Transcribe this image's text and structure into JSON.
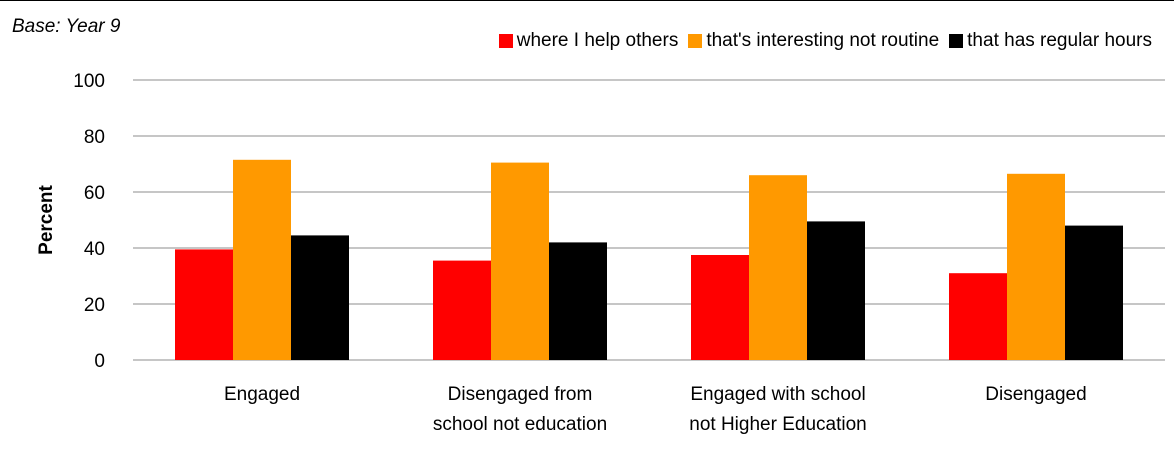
{
  "base_note": "Base: Year 9",
  "legend": [
    {
      "label": "where I help others",
      "color": "#ff0000"
    },
    {
      "label": "that's interesting not routine",
      "color": "#ff9900"
    },
    {
      "label": "that has regular hours",
      "color": "#000000"
    }
  ],
  "chart_data": {
    "type": "bar",
    "ylabel": "Percent",
    "xlabel": "",
    "ylim": [
      0,
      100
    ],
    "yticks": [
      0,
      20,
      40,
      60,
      80,
      100
    ],
    "grid": true,
    "legend_position": "top-right",
    "categories": [
      [
        "Engaged"
      ],
      [
        "Disengaged from",
        "school not education"
      ],
      [
        "Engaged with school",
        "not Higher Education"
      ],
      [
        "Disengaged"
      ]
    ],
    "series": [
      {
        "name": "where I help others",
        "color": "#ff0000",
        "values": [
          39.5,
          35.5,
          37.5,
          31
        ]
      },
      {
        "name": "that's interesting not routine",
        "color": "#ff9900",
        "values": [
          71.5,
          70.5,
          66,
          66.5
        ]
      },
      {
        "name": "that has regular hours",
        "color": "#000000",
        "values": [
          44.5,
          42,
          49.5,
          48
        ]
      }
    ]
  }
}
